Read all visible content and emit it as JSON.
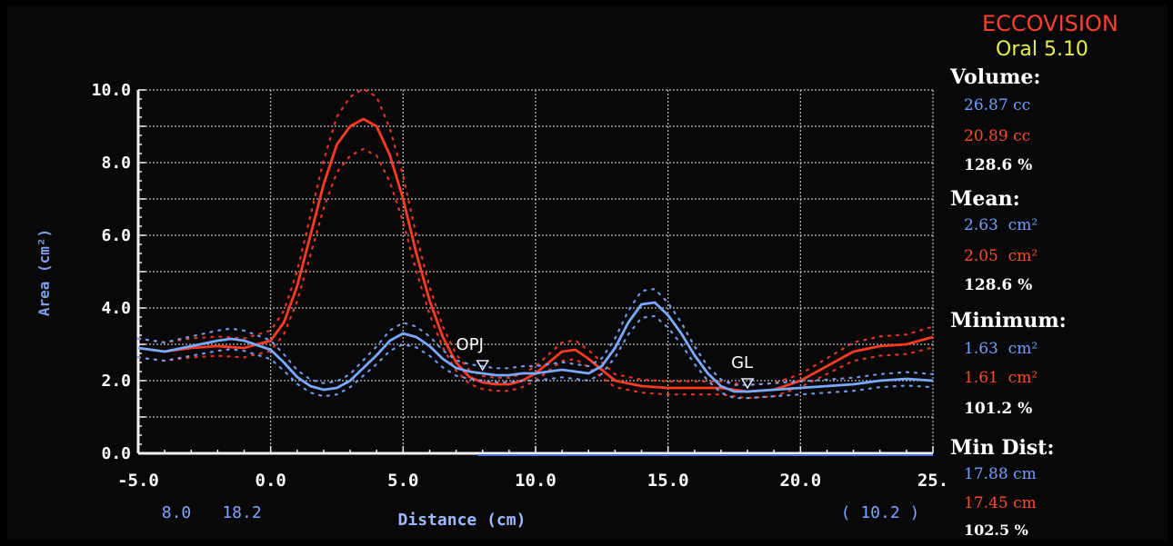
{
  "app": {
    "name": "ECCOVISION",
    "version": "Oral 5.10"
  },
  "chart_data": {
    "type": "line",
    "xlabel": "Distance (cm)",
    "ylabel": "Area (cm²)",
    "xlim": [
      -5.0,
      25.0
    ],
    "ylim": [
      0.0,
      10.0
    ],
    "x_ticks": [
      "-5.0",
      "0.0",
      "5.0",
      "10.0",
      "15.0",
      "20.0",
      "25."
    ],
    "y_ticks": [
      "0.0",
      "2.0",
      "4.0",
      "6.0",
      "8.0",
      "10.0"
    ],
    "grid": true,
    "bottom_left_values": [
      "8.0",
      "18.2"
    ],
    "bottom_right_value": "( 10.2 )",
    "annotations": [
      {
        "label": "OPJ",
        "x": 8.0,
        "y": 2.4
      },
      {
        "label": "GL",
        "x": 18.0,
        "y": 1.9
      }
    ],
    "series": [
      {
        "color": "#ff3b22",
        "x": [
          -5,
          -4,
          -3,
          -2,
          -1,
          0,
          0.5,
          1,
          1.5,
          2,
          2.5,
          3,
          3.5,
          4,
          4.5,
          5,
          5.5,
          6,
          6.5,
          7,
          7.5,
          8,
          8.5,
          9,
          9.5,
          10,
          10.5,
          11,
          11.5,
          12,
          12.5,
          13,
          14,
          15,
          16,
          17,
          18,
          19,
          20,
          21,
          22,
          23,
          24,
          25
        ],
        "y": [
          2.9,
          2.8,
          2.9,
          2.95,
          2.9,
          3.1,
          3.6,
          4.6,
          6.0,
          7.4,
          8.5,
          9.0,
          9.2,
          9.0,
          8.2,
          7.0,
          5.5,
          4.2,
          3.2,
          2.5,
          2.1,
          1.95,
          1.9,
          1.9,
          2.0,
          2.2,
          2.5,
          2.8,
          2.85,
          2.6,
          2.3,
          2.0,
          1.85,
          1.8,
          1.8,
          1.8,
          1.7,
          1.75,
          2.0,
          2.4,
          2.8,
          2.95,
          3.0,
          3.2
        ]
      },
      {
        "color": "#79a8ff",
        "x": [
          -5,
          -4,
          -3,
          -2,
          -1.5,
          -1,
          0,
          0.5,
          1,
          1.5,
          2,
          2.5,
          3,
          3.5,
          4,
          4.5,
          5,
          5.5,
          6,
          6.5,
          7,
          7.5,
          8,
          8.5,
          9,
          9.5,
          10,
          10.5,
          11,
          11.5,
          12,
          12.5,
          13,
          13.5,
          14,
          14.5,
          15,
          15.5,
          16,
          16.5,
          17,
          17.5,
          18,
          19,
          20,
          21,
          22,
          23,
          24,
          25
        ],
        "y": [
          2.9,
          2.8,
          2.95,
          3.1,
          3.15,
          3.1,
          2.85,
          2.5,
          2.1,
          1.85,
          1.75,
          1.8,
          2.0,
          2.35,
          2.7,
          3.1,
          3.3,
          3.2,
          2.95,
          2.6,
          2.35,
          2.25,
          2.2,
          2.15,
          2.15,
          2.2,
          2.2,
          2.25,
          2.3,
          2.25,
          2.2,
          2.4,
          2.9,
          3.6,
          4.1,
          4.15,
          3.8,
          3.3,
          2.7,
          2.2,
          1.85,
          1.7,
          1.7,
          1.75,
          1.8,
          1.85,
          1.9,
          2.0,
          2.05,
          2.0
        ]
      }
    ]
  },
  "panel": {
    "volume": {
      "label": "Volume:",
      "blue": "26.87",
      "blue_unit": "cc",
      "red": "20.89",
      "red_unit": "cc",
      "pct": "128.6 %"
    },
    "mean": {
      "label": "Mean:",
      "blue": "2.63",
      "blue_unit": "cm²",
      "red": "2.05",
      "red_unit": "cm²",
      "pct": "128.6 %"
    },
    "minimum": {
      "label": "Minimum:",
      "blue": "1.63",
      "blue_unit": "cm²",
      "red": "1.61",
      "red_unit": "cm²",
      "pct": "101.2 %"
    },
    "min_dist": {
      "label": "Min Dist:",
      "blue": "17.88",
      "blue_unit": "cm",
      "red": "17.45",
      "red_unit": "cm",
      "pct": "102.5 %"
    }
  }
}
